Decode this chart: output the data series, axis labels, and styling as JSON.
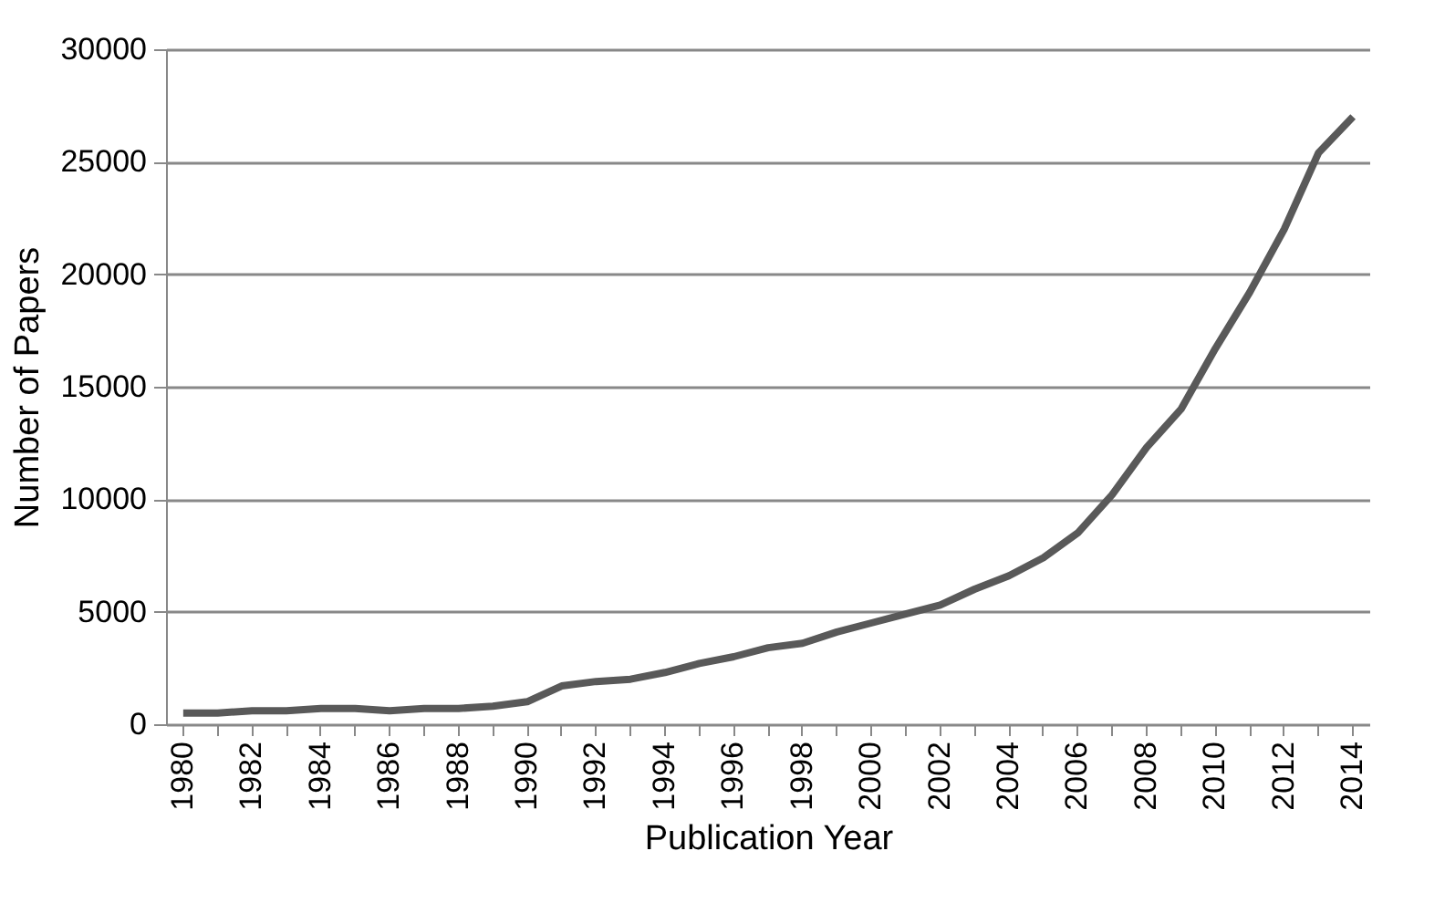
{
  "chart_data": {
    "type": "line",
    "xlabel": "Publication Year",
    "ylabel": "Number of Papers",
    "categories": [
      "1980",
      null,
      "1982",
      null,
      "1984",
      null,
      "1986",
      null,
      "1988",
      null,
      "1990",
      null,
      "1992",
      null,
      "1994",
      null,
      "1996",
      null,
      "1998",
      null,
      "2000",
      null,
      "2002",
      null,
      "2004",
      null,
      "2006",
      null,
      "2008",
      null,
      "2010",
      null,
      "2012",
      null,
      "2014"
    ],
    "series": [
      {
        "color": "#595959",
        "values": [
          500,
          500,
          600,
          600,
          700,
          700,
          600,
          700,
          700,
          800,
          1000,
          1700,
          1900,
          2000,
          2300,
          2700,
          3000,
          3400,
          3600,
          4100,
          4500,
          4900,
          5300,
          6000,
          6600,
          7400,
          8500,
          10200,
          12300,
          14000,
          16700,
          19200,
          22000,
          25400,
          27000
        ]
      }
    ],
    "ylim": [
      0,
      30000
    ],
    "yticks": [
      0,
      5000,
      10000,
      15000,
      20000,
      25000,
      30000
    ],
    "grid": "y",
    "marker": "none",
    "line_style": "solid"
  }
}
